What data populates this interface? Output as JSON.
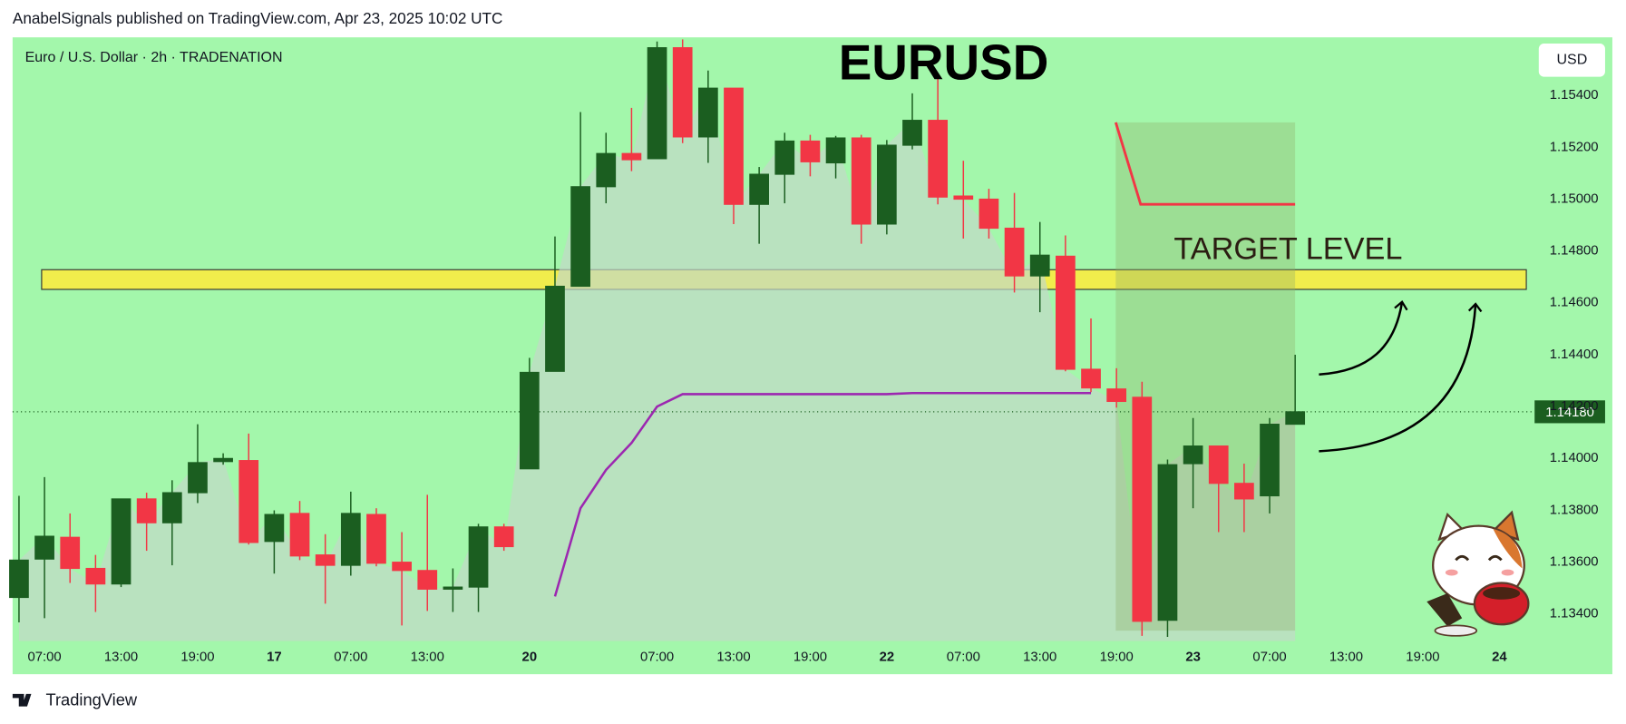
{
  "header": {
    "text": "AnabelSignals published on TradingView.com, Apr 23, 2025 10:02 UTC"
  },
  "footer": {
    "brand": "TradingView"
  },
  "chart_data": {
    "type": "candlestick",
    "title": "EURUSD",
    "symbol": "Euro / U.S. Dollar · 2h · TRADENATION",
    "currency": "USD",
    "up_color": "#1b5e20",
    "down_color": "#f23645",
    "background": "#a3f7ab",
    "grid": false,
    "open": [
      1.13464,
      1.13612,
      1.13696,
      1.13576,
      1.13516,
      1.13844,
      1.13752,
      1.13868,
      1.13988,
      1.13992,
      1.1368,
      1.13788,
      1.13628,
      1.13588,
      1.13784,
      1.136,
      1.13568,
      1.13496,
      1.13504,
      1.13736,
      1.1396,
      1.14336,
      1.14664,
      1.15048,
      1.15176,
      1.15156,
      1.15584,
      1.1524,
      1.15428,
      1.1498,
      1.15096,
      1.15224,
      1.1514,
      1.15236,
      1.14904,
      1.15208,
      1.15304,
      1.15012,
      1.15,
      1.14888,
      1.14704,
      1.1478,
      1.14344,
      1.14268,
      1.14236,
      1.13376,
      1.1398,
      1.14048,
      1.13904,
      1.13856,
      1.14132
    ],
    "high": [
      1.13856,
      1.13928,
      1.13788,
      1.13628,
      1.13844,
      1.13868,
      1.13916,
      1.14132,
      1.1402,
      1.14096,
      1.138,
      1.13836,
      1.13708,
      1.13872,
      1.13808,
      1.13716,
      1.1386,
      1.13576,
      1.13748,
      1.13748,
      1.14388,
      1.14856,
      1.15336,
      1.15256,
      1.15352,
      1.15608,
      1.15616,
      1.15496,
      1.15428,
      1.15124,
      1.15256,
      1.15248,
      1.15244,
      1.15248,
      1.15228,
      1.15408,
      1.1548,
      1.15148,
      1.1504,
      1.15024,
      1.14912,
      1.1486,
      1.1454,
      1.14348,
      1.14296,
      1.13996,
      1.14156,
      1.14048,
      1.1398,
      1.14156,
      1.144
    ],
    "low": [
      1.13368,
      1.13384,
      1.1352,
      1.13408,
      1.13504,
      1.13644,
      1.13588,
      1.13828,
      1.13976,
      1.13668,
      1.13556,
      1.13608,
      1.1344,
      1.13548,
      1.13584,
      1.13356,
      1.13412,
      1.13408,
      1.13408,
      1.13644,
      1.1396,
      1.14336,
      1.14664,
      1.14984,
      1.15108,
      1.15156,
      1.15216,
      1.1514,
      1.14904,
      1.14828,
      1.14984,
      1.15088,
      1.1508,
      1.14828,
      1.14864,
      1.15192,
      1.1498,
      1.14848,
      1.14848,
      1.1464,
      1.14564,
      1.14336,
      1.14256,
      1.14196,
      1.13316,
      1.13312,
      1.13808,
      1.13716,
      1.13716,
      1.13788,
      1.14132
    ],
    "close": [
      1.13608,
      1.137,
      1.13576,
      1.13516,
      1.13844,
      1.13752,
      1.13868,
      1.13984,
      1.14,
      1.13676,
      1.13784,
      1.13624,
      1.13588,
      1.13788,
      1.13596,
      1.13568,
      1.13496,
      1.13504,
      1.13736,
      1.1366,
      1.14332,
      1.14664,
      1.15048,
      1.15176,
      1.15152,
      1.15584,
      1.1524,
      1.15428,
      1.1498,
      1.15096,
      1.15224,
      1.15144,
      1.15236,
      1.14904,
      1.15208,
      1.15304,
      1.15008,
      1.15,
      1.14888,
      1.14704,
      1.14784,
      1.14344,
      1.14272,
      1.1422,
      1.13372,
      1.13976,
      1.14048,
      1.13904,
      1.13844,
      1.14132,
      1.1418
    ],
    "ma": {
      "color": "#9c27b0",
      "values": [
        null,
        null,
        null,
        null,
        null,
        null,
        null,
        null,
        null,
        null,
        null,
        null,
        null,
        null,
        null,
        null,
        null,
        null,
        null,
        null,
        null,
        1.13468,
        1.13808,
        1.13956,
        1.1406,
        1.142,
        1.14248,
        1.14248,
        1.14248,
        1.14248,
        1.14248,
        1.14248,
        1.14248,
        1.14248,
        1.14248,
        1.14252,
        1.14252,
        1.14252,
        1.14252,
        1.14252,
        1.14252,
        1.14252,
        1.14252,
        null,
        null,
        null,
        null,
        null,
        null,
        null,
        null
      ]
    },
    "zones": [
      {
        "from": 1.14652,
        "to": 1.14728,
        "color": "#ffeb3b",
        "label": "TARGET LEVEL"
      }
    ],
    "current_price": {
      "value": 1.1418,
      "label": "1.14180"
    },
    "xlim": [
      -0.25,
      59.3
    ],
    "xticks": [
      {
        "value": 1,
        "label": "07:00"
      },
      {
        "value": 4,
        "label": "13:00"
      },
      {
        "value": 7,
        "label": "19:00"
      },
      {
        "value": 10,
        "label": "17"
      },
      {
        "value": 13,
        "label": "07:00"
      },
      {
        "value": 16,
        "label": "13:00"
      },
      {
        "value": 20,
        "label": "20"
      },
      {
        "value": 25,
        "label": "07:00"
      },
      {
        "value": 28,
        "label": "13:00"
      },
      {
        "value": 31,
        "label": "19:00"
      },
      {
        "value": 34,
        "label": "22"
      },
      {
        "value": 37,
        "label": "07:00"
      },
      {
        "value": 40,
        "label": "13:00"
      },
      {
        "value": 43,
        "label": "19:00"
      },
      {
        "value": 46,
        "label": "23"
      },
      {
        "value": 49,
        "label": "07:00"
      },
      {
        "value": 52,
        "label": "13:00"
      },
      {
        "value": 55,
        "label": "19:00"
      },
      {
        "value": 58,
        "label": "24"
      }
    ],
    "ylim": [
      1.13296,
      1.15624
    ],
    "yticks": [
      {
        "value": 1.134,
        "label": "1.13400"
      },
      {
        "value": 1.136,
        "label": "1.13600"
      },
      {
        "value": 1.138,
        "label": "1.13800"
      },
      {
        "value": 1.14,
        "label": "1.14000"
      },
      {
        "value": 1.142,
        "label": "1.14200"
      },
      {
        "value": 1.144,
        "label": "1.14400"
      },
      {
        "value": 1.146,
        "label": "1.14600"
      },
      {
        "value": 1.148,
        "label": "1.14800"
      },
      {
        "value": 1.15,
        "label": "1.15000"
      },
      {
        "value": 1.152,
        "label": "1.15200"
      },
      {
        "value": 1.154,
        "label": "1.15400"
      }
    ]
  }
}
